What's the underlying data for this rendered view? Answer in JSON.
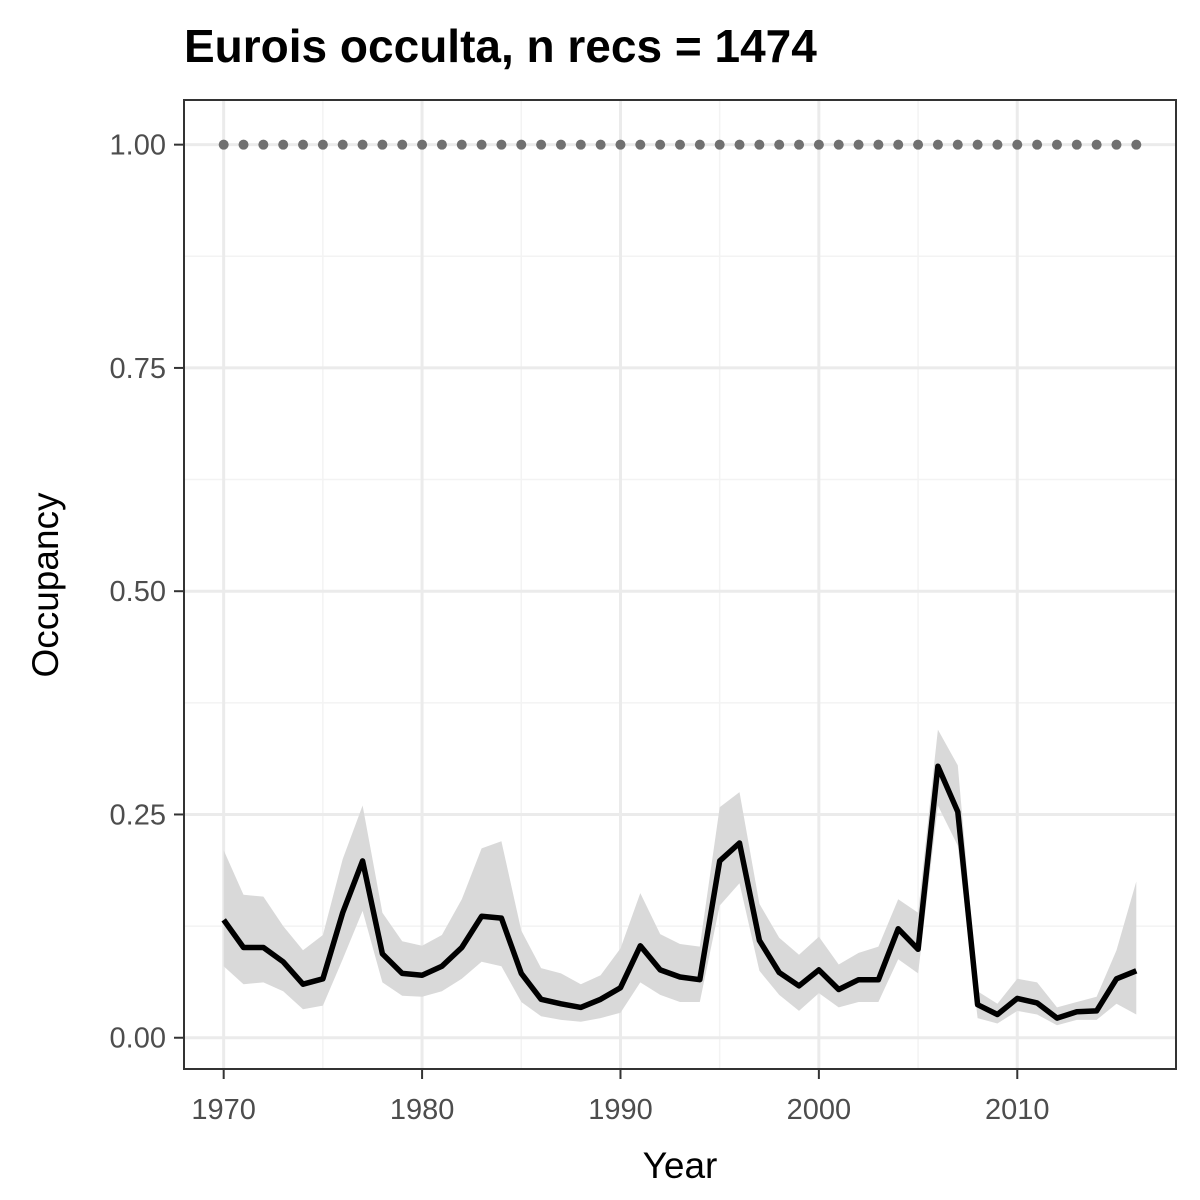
{
  "chart_data": {
    "type": "line",
    "title": "Eurois occulta, n recs = 1474",
    "xlabel": "Year",
    "ylabel": "Occupancy",
    "xlim": [
      1968,
      2018
    ],
    "ylim": [
      -0.035,
      1.05
    ],
    "x_ticks": [
      1970,
      1980,
      1990,
      2000,
      2010
    ],
    "y_ticks": [
      0.0,
      0.25,
      0.5,
      0.75,
      1.0
    ],
    "x_tick_labels": [
      "1970",
      "1980",
      "1990",
      "2000",
      "2010"
    ],
    "y_tick_labels": [
      "0.00",
      "0.25",
      "0.50",
      "0.75",
      "1.00"
    ],
    "grid": true,
    "x": [
      1970,
      1971,
      1972,
      1973,
      1974,
      1975,
      1976,
      1977,
      1978,
      1979,
      1980,
      1981,
      1982,
      1983,
      1984,
      1985,
      1986,
      1987,
      1988,
      1989,
      1990,
      1991,
      1992,
      1993,
      1994,
      1995,
      1996,
      1997,
      1998,
      1999,
      2000,
      2001,
      2002,
      2003,
      2004,
      2005,
      2006,
      2007,
      2008,
      2009,
      2010,
      2011,
      2012,
      2013,
      2014,
      2015,
      2016
    ],
    "series": [
      {
        "values": [
          0.132,
          0.101,
          0.101,
          0.085,
          0.06,
          0.066,
          0.14,
          0.198,
          0.094,
          0.072,
          0.07,
          0.08,
          0.101,
          0.136,
          0.134,
          0.072,
          0.043,
          0.038,
          0.034,
          0.043,
          0.056,
          0.103,
          0.076,
          0.068,
          0.065,
          0.198,
          0.218,
          0.109,
          0.073,
          0.058,
          0.076,
          0.054,
          0.065,
          0.065,
          0.122,
          0.099,
          0.304,
          0.253,
          0.037,
          0.026,
          0.044,
          0.039,
          0.022,
          0.029,
          0.03,
          0.066,
          0.075
        ],
        "lower": [
          0.08,
          0.06,
          0.062,
          0.052,
          0.032,
          0.036,
          0.088,
          0.142,
          0.062,
          0.047,
          0.046,
          0.052,
          0.066,
          0.085,
          0.08,
          0.04,
          0.024,
          0.02,
          0.018,
          0.022,
          0.028,
          0.062,
          0.048,
          0.04,
          0.04,
          0.148,
          0.173,
          0.075,
          0.048,
          0.03,
          0.05,
          0.034,
          0.04,
          0.04,
          0.088,
          0.072,
          0.26,
          0.215,
          0.022,
          0.016,
          0.03,
          0.026,
          0.014,
          0.02,
          0.02,
          0.038,
          0.026
        ],
        "upper": [
          0.21,
          0.16,
          0.158,
          0.125,
          0.098,
          0.115,
          0.2,
          0.26,
          0.14,
          0.108,
          0.103,
          0.115,
          0.155,
          0.212,
          0.22,
          0.12,
          0.078,
          0.072,
          0.06,
          0.07,
          0.1,
          0.162,
          0.116,
          0.105,
          0.102,
          0.258,
          0.275,
          0.15,
          0.112,
          0.093,
          0.113,
          0.082,
          0.095,
          0.102,
          0.155,
          0.14,
          0.345,
          0.305,
          0.052,
          0.038,
          0.066,
          0.062,
          0.034,
          0.04,
          0.046,
          0.098,
          0.175
        ]
      },
      {
        "values": [
          1,
          1,
          1,
          1,
          1,
          1,
          1,
          1,
          1,
          1,
          1,
          1,
          1,
          1,
          1,
          1,
          1,
          1,
          1,
          1,
          1,
          1,
          1,
          1,
          1,
          1,
          1,
          1,
          1,
          1,
          1,
          1,
          1,
          1,
          1,
          1,
          1,
          1,
          1,
          1,
          1,
          1,
          1,
          1,
          1,
          1,
          1
        ]
      }
    ],
    "colors": {
      "line": "#000000",
      "ribbon": "#d9d9d9",
      "dots": "#707070",
      "grid_major": "#ebebeb",
      "grid_minor": "#f3f3f3",
      "panel_border": "#333333"
    }
  }
}
